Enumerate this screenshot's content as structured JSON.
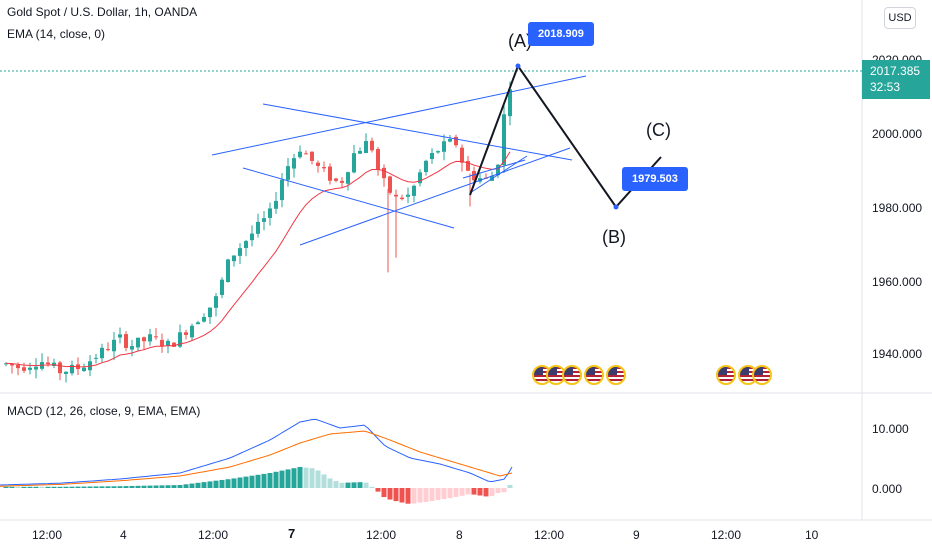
{
  "header": {
    "symbol_title": "Gold Spot / U.S. Dollar, 1h, OANDA",
    "indicator_label": "EMA (14, close, 0)",
    "macd_label": "MACD (12, 26, close, 9, EMA, EMA)",
    "currency_button": "USD"
  },
  "price_axis": {
    "ticks": [
      "2020.000",
      "2000.000",
      "1980.000",
      "1960.000",
      "1940.000"
    ],
    "last_price": "2017.385",
    "countdown": "32:53"
  },
  "macd_axis": {
    "ticks": [
      "10.000",
      "0.000"
    ]
  },
  "time_axis": {
    "labels": [
      "12:00",
      "4",
      "12:00",
      "7",
      "12:00",
      "8",
      "12:00",
      "9",
      "12:00",
      "10"
    ]
  },
  "annotations": {
    "callout_high": "2018.909",
    "callout_low": "1979.503",
    "wave_a": "(A)",
    "wave_b": "(B)",
    "wave_c": "(C)"
  },
  "colors": {
    "bull": "#26a69a",
    "bear": "#ef5350",
    "ema": "#f23645",
    "trendline": "#2962ff",
    "macd": "#2962ff",
    "signal": "#ff6d00",
    "hist_pos": "#26a69a",
    "hist_pos_light": "#b2dfdb",
    "hist_neg": "#ef5350",
    "hist_neg_light": "#ffcdd2"
  },
  "event_icons": [
    "us-flag-icon",
    "us-flag-icon",
    "us-flag-icon",
    "us-flag-icon",
    "us-flag-icon",
    "us-flag-icon",
    "us-flag-icon",
    "us-flag-icon"
  ]
}
